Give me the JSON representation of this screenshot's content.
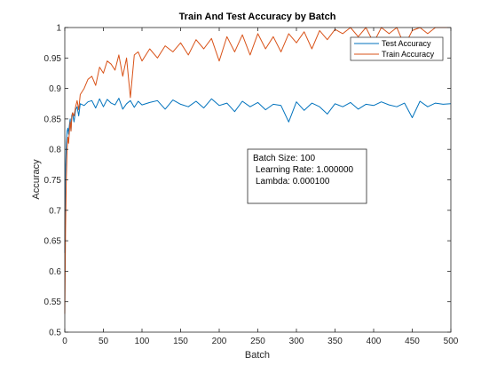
{
  "chart_data": {
    "type": "line",
    "title": "Train And Test Accuracy by Batch",
    "xlabel": "Batch",
    "ylabel": "Accuracy",
    "xlim": [
      0,
      500
    ],
    "ylim": [
      0.5,
      1
    ],
    "xticks": [
      0,
      50,
      100,
      150,
      200,
      250,
      300,
      350,
      400,
      450,
      500
    ],
    "yticks": [
      0.5,
      0.55,
      0.6,
      0.65,
      0.7,
      0.75,
      0.8,
      0.85,
      0.9,
      0.95,
      1
    ],
    "ytick_labels": [
      "0.5",
      "0.55",
      "0.6",
      "0.65",
      "0.7",
      "0.75",
      "0.8",
      "0.85",
      "0.9",
      "0.95",
      "1"
    ],
    "grid": false,
    "legend_position": "top-right",
    "series": [
      {
        "name": "Test Accuracy",
        "color": "#0072BD",
        "x": [
          0,
          1,
          2,
          3,
          4,
          5,
          6,
          7,
          8,
          9,
          10,
          12,
          14,
          16,
          18,
          20,
          25,
          30,
          35,
          40,
          45,
          50,
          55,
          60,
          65,
          70,
          75,
          80,
          85,
          90,
          95,
          100,
          110,
          120,
          130,
          140,
          150,
          160,
          170,
          180,
          190,
          200,
          210,
          220,
          230,
          240,
          250,
          260,
          270,
          280,
          290,
          300,
          310,
          320,
          330,
          340,
          350,
          360,
          370,
          380,
          390,
          400,
          410,
          420,
          430,
          440,
          450,
          460,
          470,
          480,
          490,
          500
        ],
        "y": [
          0.63,
          0.77,
          0.81,
          0.83,
          0.835,
          0.825,
          0.84,
          0.85,
          0.83,
          0.855,
          0.86,
          0.845,
          0.865,
          0.87,
          0.855,
          0.875,
          0.872,
          0.878,
          0.88,
          0.868,
          0.883,
          0.87,
          0.882,
          0.876,
          0.873,
          0.884,
          0.866,
          0.875,
          0.88,
          0.869,
          0.879,
          0.873,
          0.877,
          0.88,
          0.866,
          0.881,
          0.874,
          0.87,
          0.879,
          0.868,
          0.883,
          0.872,
          0.876,
          0.862,
          0.879,
          0.87,
          0.877,
          0.865,
          0.874,
          0.872,
          0.845,
          0.878,
          0.864,
          0.876,
          0.87,
          0.858,
          0.875,
          0.87,
          0.877,
          0.866,
          0.874,
          0.872,
          0.878,
          0.873,
          0.87,
          0.876,
          0.852,
          0.879,
          0.87,
          0.876,
          0.874,
          0.875
        ]
      },
      {
        "name": "Train Accuracy",
        "color": "#D95319",
        "x": [
          0,
          1,
          2,
          3,
          4,
          5,
          6,
          7,
          8,
          9,
          10,
          12,
          14,
          16,
          18,
          20,
          25,
          30,
          35,
          40,
          45,
          50,
          55,
          60,
          65,
          70,
          75,
          80,
          85,
          90,
          95,
          100,
          110,
          120,
          130,
          140,
          150,
          160,
          170,
          180,
          190,
          200,
          210,
          220,
          230,
          240,
          250,
          260,
          270,
          280,
          290,
          300,
          310,
          320,
          330,
          340,
          350,
          360,
          370,
          380,
          390,
          400,
          410,
          420,
          430,
          440,
          450,
          460,
          470,
          480,
          490,
          500
        ],
        "y": [
          0.53,
          0.67,
          0.75,
          0.8,
          0.82,
          0.81,
          0.83,
          0.845,
          0.83,
          0.85,
          0.86,
          0.855,
          0.87,
          0.88,
          0.865,
          0.89,
          0.9,
          0.915,
          0.92,
          0.905,
          0.935,
          0.925,
          0.945,
          0.94,
          0.93,
          0.955,
          0.92,
          0.95,
          0.885,
          0.955,
          0.96,
          0.945,
          0.965,
          0.95,
          0.97,
          0.96,
          0.975,
          0.955,
          0.98,
          0.965,
          0.982,
          0.945,
          0.985,
          0.96,
          0.988,
          0.955,
          0.99,
          0.965,
          0.985,
          0.96,
          0.99,
          0.975,
          0.993,
          0.965,
          0.995,
          0.98,
          0.997,
          0.99,
          1.0,
          0.985,
          1.0,
          0.975,
          1.0,
          0.99,
          1.0,
          0.97,
          0.995,
          1.0,
          0.99,
          1.0,
          1.0,
          1.0
        ]
      }
    ],
    "annotation": {
      "lines": [
        "Batch Size: 100",
        "Learning Rate: 1.000000",
        "Lambda: 0.000100"
      ]
    }
  }
}
